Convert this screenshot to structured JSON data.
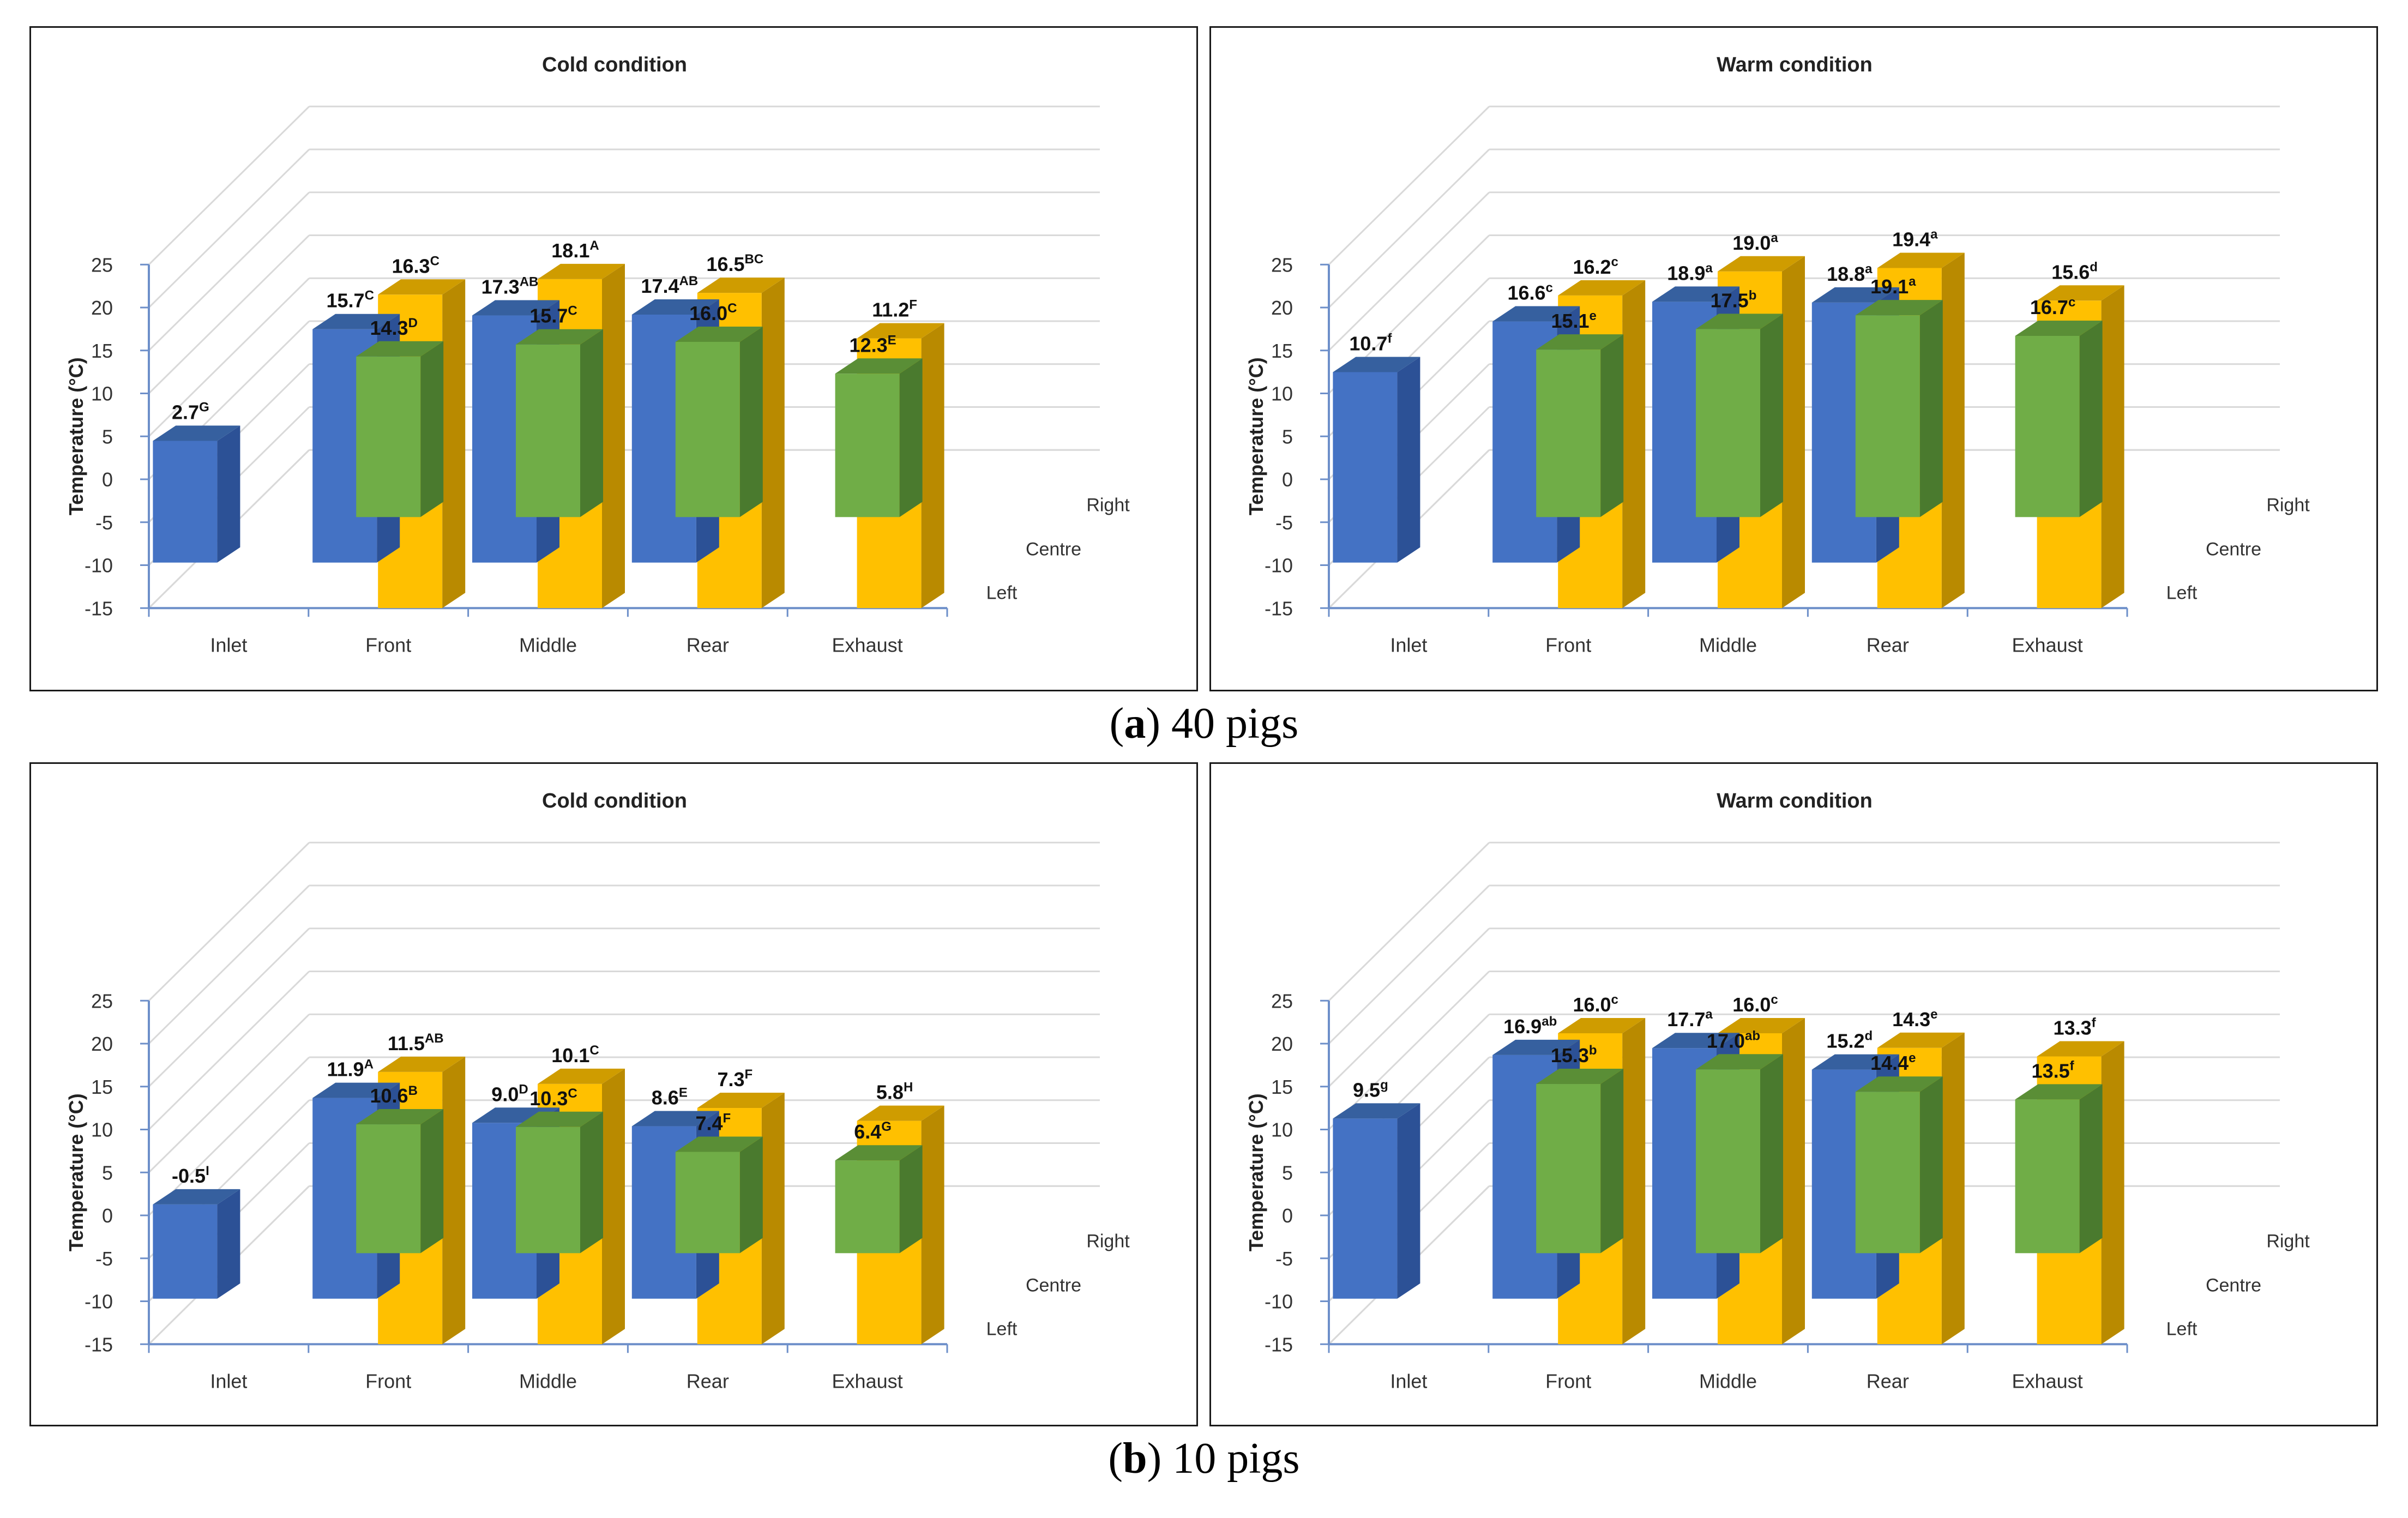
{
  "captions": [
    {
      "letter": "a",
      "text": ") 40 pigs"
    },
    {
      "letter": "b",
      "text": ") 10 pigs"
    }
  ],
  "colors": {
    "left": "#70ad47",
    "left_side": "#4a7a2e",
    "left_top": "#5a8e36",
    "centre": "#4472c4",
    "centre_side": "#2c5196",
    "centre_top": "#36609f",
    "right": "#ffc000",
    "right_side": "#b98a00",
    "right_top": "#cf9c00",
    "axis": "#6d8fc9",
    "grid": "#d9d9d9"
  },
  "chart_data": [
    {
      "type": "bar",
      "title": "Cold condition",
      "ylabel": "Temperature (°C)",
      "ylim": [
        -15,
        25
      ],
      "yticks": [
        "25",
        "20",
        "15",
        "10",
        "5",
        "0",
        "-5",
        "-10",
        "-15"
      ],
      "categories": [
        "Inlet",
        "Front",
        "Middle",
        "Rear",
        "Exhaust"
      ],
      "depth_labels": [
        "Right",
        "Centre",
        "Left"
      ],
      "series": [
        {
          "name": "Left",
          "values": [
            null,
            14.3,
            15.7,
            16.0,
            12.3
          ],
          "letters": [
            "",
            "D",
            "C",
            "C",
            "E"
          ]
        },
        {
          "name": "Centre",
          "values": [
            2.7,
            15.7,
            17.3,
            17.4,
            null
          ],
          "letters": [
            "G",
            "C",
            "AB",
            "AB",
            ""
          ]
        },
        {
          "name": "Right",
          "values": [
            null,
            16.3,
            18.1,
            16.5,
            11.2
          ],
          "letters": [
            "",
            "C",
            "A",
            "BC",
            "F"
          ]
        }
      ]
    },
    {
      "type": "bar",
      "title": "Warm condition",
      "ylabel": "Temperature (°C)",
      "ylim": [
        -15,
        25
      ],
      "yticks": [
        "25",
        "20",
        "15",
        "10",
        "5",
        "0",
        "-5",
        "-10",
        "-15"
      ],
      "categories": [
        "Inlet",
        "Front",
        "Middle",
        "Rear",
        "Exhaust"
      ],
      "depth_labels": [
        "Right",
        "Centre",
        "Left"
      ],
      "series": [
        {
          "name": "Left",
          "values": [
            null,
            15.1,
            17.5,
            19.1,
            16.7
          ],
          "letters": [
            "",
            "e",
            "b",
            "a",
            "c"
          ]
        },
        {
          "name": "Centre",
          "values": [
            10.7,
            16.6,
            18.9,
            18.8,
            null
          ],
          "letters": [
            "f",
            "c",
            "a",
            "a",
            ""
          ]
        },
        {
          "name": "Right",
          "values": [
            null,
            16.2,
            19.0,
            19.4,
            15.6
          ],
          "letters": [
            "",
            "c",
            "a",
            "a",
            "d"
          ]
        }
      ]
    },
    {
      "type": "bar",
      "title": "Cold condition",
      "ylabel": "Temperature (°C)",
      "ylim": [
        -15,
        25
      ],
      "yticks": [
        "25",
        "20",
        "15",
        "10",
        "5",
        "0",
        "-5",
        "-10",
        "-15"
      ],
      "categories": [
        "Inlet",
        "Front",
        "Middle",
        "Rear",
        "Exhaust"
      ],
      "depth_labels": [
        "Right",
        "Centre",
        "Left"
      ],
      "series": [
        {
          "name": "Left",
          "values": [
            null,
            10.6,
            10.3,
            7.4,
            6.4
          ],
          "letters": [
            "",
            "B",
            "C",
            "F",
            "G"
          ]
        },
        {
          "name": "Centre",
          "values": [
            -0.5,
            11.9,
            9.0,
            8.6,
            null
          ],
          "letters": [
            "I",
            "A",
            "D",
            "E",
            ""
          ]
        },
        {
          "name": "Right",
          "values": [
            null,
            11.5,
            10.1,
            7.3,
            5.8
          ],
          "letters": [
            "",
            "AB",
            "C",
            "F",
            "H"
          ]
        }
      ]
    },
    {
      "type": "bar",
      "title": "Warm condition",
      "ylabel": "Temperature (°C)",
      "ylim": [
        -15,
        25
      ],
      "yticks": [
        "25",
        "20",
        "15",
        "10",
        "5",
        "0",
        "-5",
        "-10",
        "-15"
      ],
      "categories": [
        "Inlet",
        "Front",
        "Middle",
        "Rear",
        "Exhaust"
      ],
      "depth_labels": [
        "Right",
        "Centre",
        "Left"
      ],
      "series": [
        {
          "name": "Left",
          "values": [
            null,
            15.3,
            17.0,
            14.4,
            13.5
          ],
          "letters": [
            "",
            "b",
            "ab",
            "e",
            "f"
          ]
        },
        {
          "name": "Centre",
          "values": [
            9.5,
            16.9,
            17.7,
            15.2,
            null
          ],
          "letters": [
            "g",
            "ab",
            "a",
            "d",
            ""
          ]
        },
        {
          "name": "Right",
          "values": [
            null,
            16.0,
            16.0,
            14.3,
            13.3
          ],
          "letters": [
            "",
            "c",
            "c",
            "e",
            "f"
          ]
        }
      ]
    }
  ]
}
